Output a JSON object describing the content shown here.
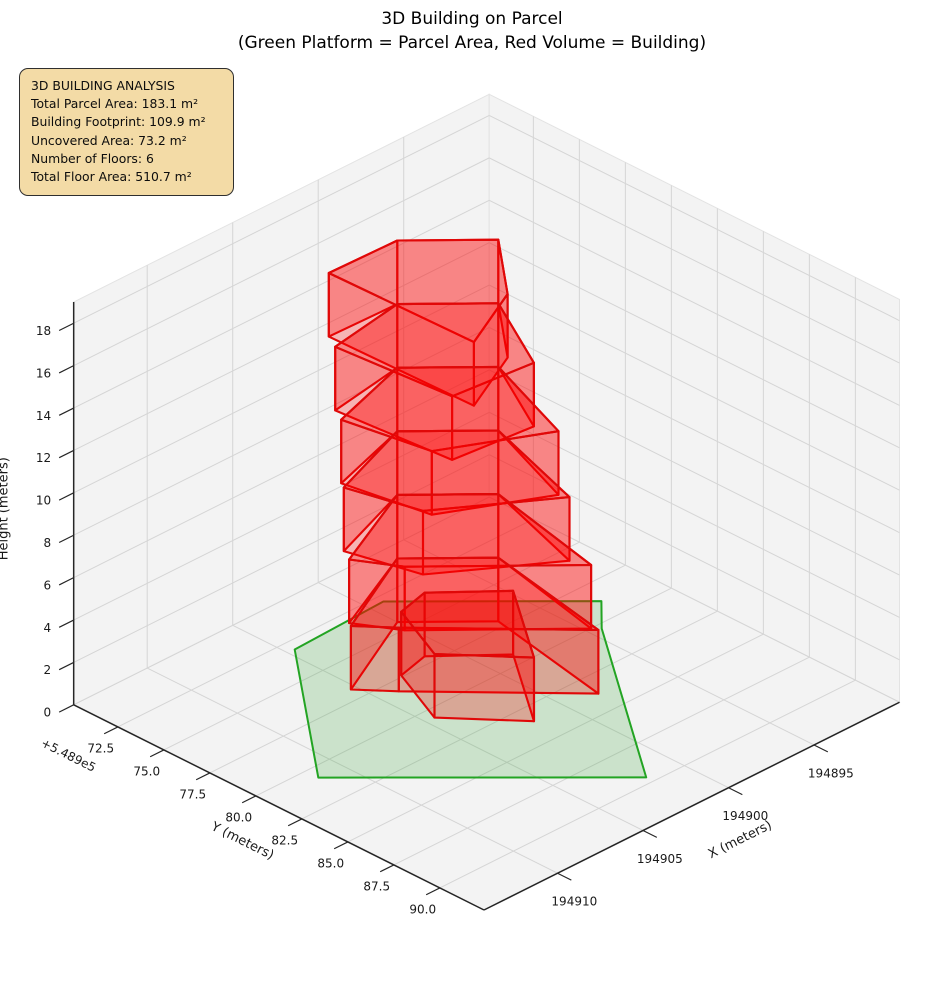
{
  "title": {
    "line1": "3D Building on Parcel",
    "line2": "(Green Platform = Parcel Area, Red Volume = Building)"
  },
  "info_box": {
    "title": "3D BUILDING ANALYSIS",
    "items": [
      "Total Parcel Area: 183.1 m²",
      "Building Footprint: 109.9 m²",
      "Uncovered Area: 73.2 m²",
      "Number of Floors: 6",
      "Total Floor Area: 510.7 m²"
    ]
  },
  "chart_data": {
    "type": "3d_building_plot",
    "legend_note": "Green Platform = Parcel Area, Red Volume = Building",
    "x_axis": {
      "label": "X (meters)",
      "ticks": [
        194895,
        194900,
        194905,
        194910
      ],
      "range": [
        194890.0,
        194914.3
      ]
    },
    "y_axis": {
      "label": "Y (meters)",
      "offset_text": "+5.489e5",
      "offset_value": 548900,
      "ticks": [
        548972.5,
        548975.0,
        548977.5,
        548980.0,
        548982.5,
        548985.0,
        548987.5,
        548990.0
      ],
      "range": [
        548970.1,
        548992.4
      ]
    },
    "z_axis": {
      "label": "Height (meters)",
      "ticks": [
        0,
        2,
        4,
        6,
        8,
        10,
        12,
        14,
        16,
        18
      ],
      "range": [
        0,
        19
      ]
    },
    "parcel": {
      "name": "parcel-area",
      "area_m2": 183.1,
      "edge_color": "#23a423",
      "fill_color": "#2ca02c",
      "fill_opacity": 0.2,
      "vertices": [
        [
          194904.6,
          548973.1
        ],
        [
          194899.2,
          548972.9
        ],
        [
          194892.8,
          548978.8
        ],
        [
          194894.4,
          548980.3
        ],
        [
          194901.8,
          548989.6
        ],
        [
          194911.4,
          548980.7
        ]
      ]
    },
    "building": {
      "name": "building-volume",
      "footprint_m2": 109.9,
      "num_floors": 6,
      "floor_height_m": 3,
      "total_floor_area_m2": 510.7,
      "edge_color": "#e00808",
      "fill_color": "#ff0000",
      "fill_opacity": 0.26,
      "floors": [
        {
          "z0": 0,
          "z1": 3,
          "footprint": [
            [
              194905.3,
              548976.8
            ],
            [
              194900.0,
              548974.4
            ],
            [
              194897.0,
              548977.1
            ],
            [
              194898.3,
              548983.75
            ],
            [
              194904.0,
              548978.2
            ]
          ]
        },
        {
          "z0": 3,
          "z1": 6,
          "footprint": [
            [
              194905.19,
              548976.6
            ],
            [
              194900.0,
              548974.4
            ],
            [
              194897.0,
              548977.1
            ],
            [
              194898.43,
              548983.47
            ],
            [
              194903.98,
              548978.5
            ]
          ]
        },
        {
          "z0": 6,
          "z1": 9,
          "footprint": [
            [
              194904.85,
              548976.0
            ],
            [
              194900.0,
              548974.4
            ],
            [
              194897.0,
              548977.1
            ],
            [
              194898.81,
              548982.65
            ],
            [
              194903.9,
              548979.42
            ]
          ]
        },
        {
          "z0": 9,
          "z1": 12,
          "footprint": [
            [
              194904.68,
              548975.7
            ],
            [
              194900.0,
              548974.4
            ],
            [
              194897.0,
              548977.1
            ],
            [
              194899.0,
              548982.23
            ],
            [
              194903.87,
              548979.87
            ]
          ]
        },
        {
          "z0": 12,
          "z1": 15,
          "footprint": [
            [
              194904.31,
              548975.03
            ],
            [
              194900.0,
              548974.4
            ],
            [
              194897.0,
              548977.1
            ],
            [
              194899.44,
              548981.3
            ],
            [
              194903.79,
              548980.9
            ]
          ]
        },
        {
          "z0": 15,
          "z1": 18,
          "footprint": [
            [
              194903.9,
              548974.3
            ],
            [
              194900.0,
              548974.4
            ],
            [
              194897.0,
              548977.1
            ],
            [
              194899.9,
              548980.3
            ],
            [
              194903.7,
              548982.0
            ]
          ]
        }
      ],
      "annex": {
        "z0": 0,
        "z1": 3,
        "footprint": [
          [
            194903.0,
            548977.4
          ],
          [
            194901.2,
            548977.0
          ],
          [
            194898.5,
            548979.3
          ],
          [
            194901.8,
            548983.5
          ],
          [
            194904.5,
            548980.6
          ]
        ]
      }
    },
    "style": {
      "pane_color": "#f2f2f2",
      "grid_color": "#d5d5d5",
      "axis_color": "#262626",
      "tick_label_color": "#1a1a1a",
      "tick_font_px": 12,
      "axis_label_font_px": 13
    }
  }
}
